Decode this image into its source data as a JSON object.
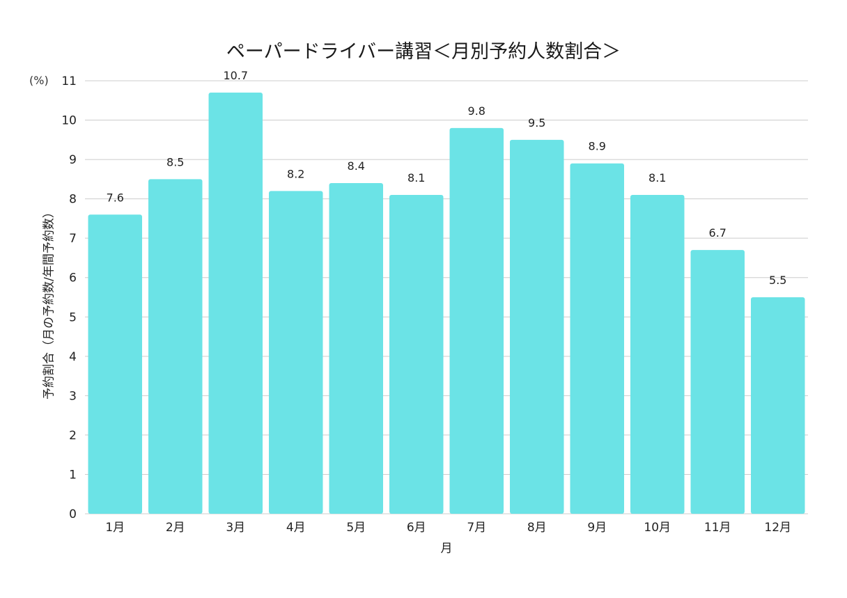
{
  "chart_data": {
    "type": "bar",
    "title": "ペーパードライバー講習＜月別予約人数割合＞",
    "unit": "(%)",
    "xlabel": "月",
    "ylabel": "予約割合（月の予約数/年間予約数）",
    "categories": [
      "1月",
      "2月",
      "3月",
      "4月",
      "5月",
      "6月",
      "7月",
      "8月",
      "9月",
      "10月",
      "11月",
      "12月"
    ],
    "values": [
      7.6,
      8.5,
      10.7,
      8.2,
      8.4,
      8.1,
      9.8,
      9.5,
      8.9,
      8.1,
      6.7,
      5.5
    ],
    "value_labels": [
      "7.6",
      "8.5",
      "10.7",
      "8.2",
      "8.4",
      "8.1",
      "9.8",
      "9.5",
      "8.9",
      "8.1",
      "6.7",
      "5.5"
    ],
    "ylim": [
      0,
      11
    ],
    "yticks": [
      "0",
      "1",
      "2",
      "3",
      "4",
      "5",
      "6",
      "7",
      "8",
      "9",
      "10",
      "11"
    ],
    "grid": true,
    "legend": "none",
    "colors": {
      "bar": "#6be3e6",
      "grid": "#cccccc"
    }
  }
}
